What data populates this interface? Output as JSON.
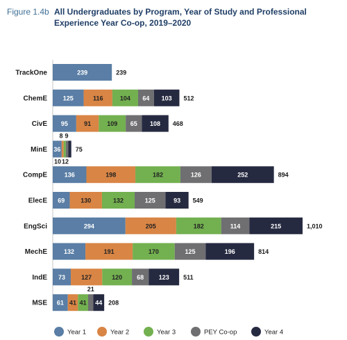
{
  "figure": {
    "number": "Figure 1.4b",
    "title": "All Undergraduates by Program, Year of Study and Professional Experience Year Co-op, 2019–2020"
  },
  "chart_data": {
    "type": "bar",
    "orientation": "horizontal",
    "stacked": true,
    "categories": [
      "TrackOne",
      "ChemE",
      "CivE",
      "MinE",
      "CompE",
      "ElecE",
      "EngSci",
      "MechE",
      "IndE",
      "MSE"
    ],
    "series": [
      {
        "name": "Year 1",
        "color": "#5a7ea5",
        "text_color": "#ffffff",
        "values": [
          239,
          125,
          95,
          36,
          136,
          69,
          294,
          132,
          73,
          61
        ]
      },
      {
        "name": "Year 2",
        "color": "#d98545",
        "text_color": "#222222",
        "values": [
          0,
          116,
          91,
          8,
          198,
          130,
          205,
          191,
          127,
          41
        ]
      },
      {
        "name": "Year 3",
        "color": "#73b050",
        "text_color": "#222222",
        "values": [
          0,
          104,
          109,
          9,
          182,
          132,
          182,
          170,
          120,
          41
        ]
      },
      {
        "name": "PEY Co-op",
        "color": "#6f6f72",
        "text_color": "#ffffff",
        "values": [
          0,
          64,
          65,
          10,
          126,
          125,
          114,
          125,
          68,
          21
        ]
      },
      {
        "name": "Year 4",
        "color": "#262a41",
        "text_color": "#ffffff",
        "values": [
          0,
          103,
          108,
          12,
          252,
          93,
          215,
          196,
          123,
          44
        ]
      }
    ],
    "totals": [
      "239",
      "512",
      "468",
      "75",
      "894",
      "549",
      "1,010",
      "814",
      "511",
      "208"
    ],
    "xlim": [
      0,
      1010
    ],
    "grid": false,
    "legend_position": "bottom"
  }
}
